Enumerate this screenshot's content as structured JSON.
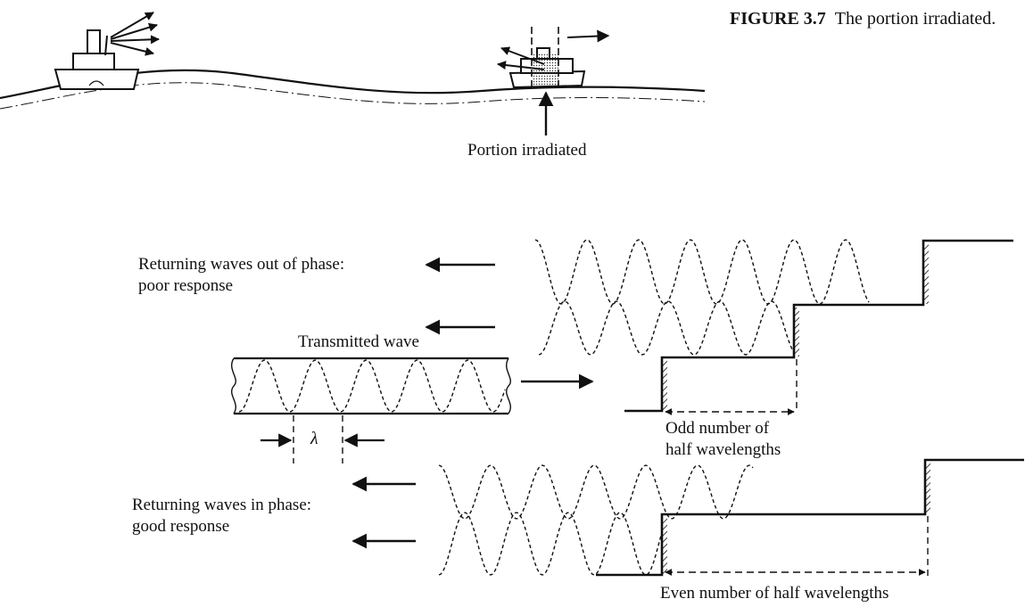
{
  "caption": {
    "figure_label": "FIGURE 3.7",
    "text": "The portion irradiated."
  },
  "top_scene": {
    "label": "Portion irradiated"
  },
  "wave_diagram": {
    "out_of_phase_title": "Returning waves out of phase:",
    "out_of_phase_subtitle": "poor response",
    "transmitted_label": "Transmitted wave",
    "lambda_symbol": "λ",
    "odd_line1": "Odd number of",
    "odd_line2": "half wavelengths",
    "in_phase_title": "Returning waves in phase:",
    "in_phase_subtitle": "good response",
    "even_label": "Even number of half wavelengths"
  }
}
